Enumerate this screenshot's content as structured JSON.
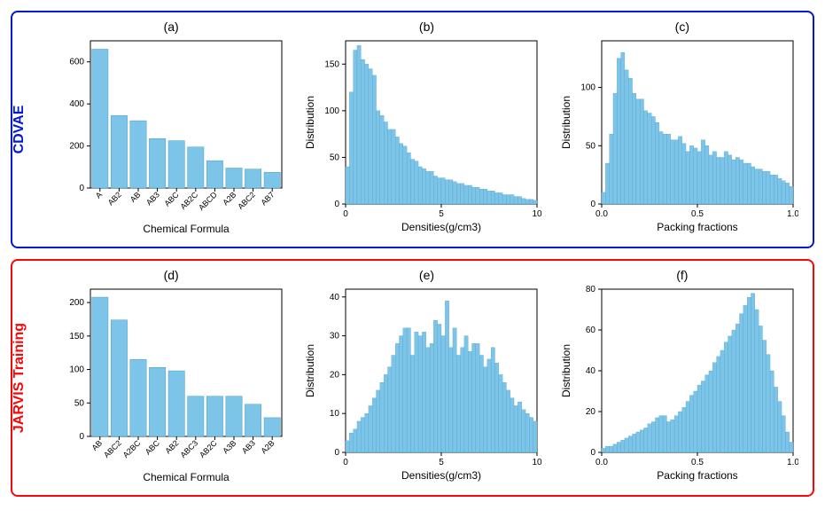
{
  "global": {
    "bar_color": "#7cc5e8",
    "bar_edge": "#4a9cc7",
    "axis_color": "#000000",
    "background": "#ffffff",
    "tick_fontsize": 10,
    "label_fontsize": 12,
    "title_fontsize": 14
  },
  "panels": {
    "cdvae": {
      "border_color": "#0018d6",
      "label": "CDVAE",
      "label_color": "#0018d6"
    },
    "jarvis": {
      "border_color": "#f90606",
      "label": "JARVIS Training",
      "label_color": "#f90606"
    }
  },
  "charts": {
    "a": {
      "title": "(a)",
      "type": "bar",
      "xlabel": "Chemical Formula",
      "ylabel": "",
      "categories": [
        "A",
        "AB2",
        "AB",
        "AB3",
        "ABC",
        "AB2C",
        "ABCD",
        "A2B",
        "ABC2",
        "AB7"
      ],
      "values": [
        660,
        345,
        320,
        235,
        225,
        195,
        130,
        95,
        90,
        75
      ],
      "ylim": [
        0,
        700
      ],
      "ytick_step": 200,
      "bar_width": 0.85,
      "rotate_xticks": 45
    },
    "b": {
      "title": "(b)",
      "type": "histogram",
      "xlabel": "Densities(g/cm3)",
      "ylabel": "Distribution",
      "xlim": [
        0,
        10
      ],
      "xtick_step": 5,
      "ylim": [
        0,
        175
      ],
      "ytick_step": 50,
      "bins": [
        40,
        120,
        165,
        170,
        155,
        150,
        145,
        138,
        100,
        95,
        88,
        80,
        80,
        72,
        65,
        62,
        55,
        48,
        46,
        40,
        38,
        35,
        35,
        30,
        28,
        28,
        26,
        26,
        24,
        22,
        22,
        20,
        20,
        18,
        18,
        16,
        16,
        14,
        14,
        12,
        12,
        10,
        10,
        10,
        8,
        8,
        6,
        5,
        5,
        4
      ]
    },
    "c": {
      "title": "(c)",
      "type": "histogram",
      "xlabel": "Packing fractions",
      "ylabel": "Distribution",
      "xlim": [
        0.0,
        1.0
      ],
      "xtick_step": 0.5,
      "ylim": [
        0,
        140
      ],
      "ytick_step": 50,
      "bins": [
        10,
        35,
        60,
        95,
        125,
        130,
        115,
        108,
        95,
        90,
        90,
        80,
        78,
        75,
        70,
        62,
        60,
        60,
        55,
        55,
        58,
        52,
        45,
        50,
        48,
        45,
        55,
        50,
        42,
        45,
        40,
        40,
        45,
        42,
        38,
        40,
        38,
        35,
        35,
        32,
        30,
        30,
        28,
        28,
        25,
        25,
        22,
        20,
        18,
        15
      ]
    },
    "d": {
      "title": "(d)",
      "type": "bar",
      "xlabel": "Chemical Formula",
      "ylabel": "",
      "categories": [
        "AB",
        "ABC2",
        "A2BC",
        "ABC",
        "AB2",
        "ABC3",
        "AB2C",
        "A3B",
        "AB3",
        "A2B"
      ],
      "values": [
        208,
        174,
        115,
        103,
        98,
        60,
        60,
        60,
        48,
        28
      ],
      "ylim": [
        0,
        220
      ],
      "ytick_step": 50,
      "bar_width": 0.85,
      "rotate_xticks": 45
    },
    "e": {
      "title": "(e)",
      "type": "histogram",
      "xlabel": "Densities(g/cm3)",
      "ylabel": "Distribution",
      "xlim": [
        0,
        10
      ],
      "xtick_step": 5,
      "ylim": [
        0,
        42
      ],
      "ytick_step": 10,
      "bins": [
        3,
        5,
        6,
        8,
        9,
        10,
        12,
        14,
        16,
        18,
        20,
        22,
        25,
        28,
        30,
        32,
        32,
        25,
        31,
        30,
        31,
        27,
        28,
        34,
        33,
        30,
        39,
        27,
        32,
        25,
        27,
        30,
        26,
        28,
        28,
        25,
        22,
        24,
        27,
        23,
        20,
        18,
        16,
        14,
        12,
        13,
        11,
        10,
        9,
        8
      ]
    },
    "f": {
      "title": "(f)",
      "type": "histogram",
      "xlabel": "Packing fractions",
      "ylabel": "Distribution",
      "xlim": [
        0.0,
        1.0
      ],
      "xtick_step": 0.5,
      "ylim": [
        0,
        80
      ],
      "ytick_step": 20,
      "bins": [
        2,
        3,
        3,
        4,
        5,
        6,
        7,
        8,
        9,
        10,
        11,
        12,
        14,
        15,
        17,
        18,
        18,
        15,
        16,
        18,
        20,
        22,
        25,
        28,
        30,
        33,
        35,
        38,
        40,
        44,
        47,
        50,
        54,
        57,
        60,
        63,
        68,
        72,
        76,
        78,
        70,
        62,
        55,
        48,
        40,
        32,
        25,
        18,
        10,
        5
      ]
    }
  }
}
